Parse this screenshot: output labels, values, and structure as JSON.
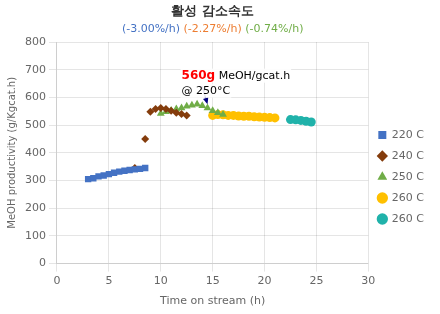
{
  "chart_data": {
    "type": "scatter",
    "title": "활성 감소속도",
    "subtitle": [
      {
        "text": "(-3.00%/h)",
        "color": "#4472c4"
      },
      {
        "text": " (-2.27%/h)",
        "color": "#ed7d31"
      },
      {
        "text": " (-0.74%/h)",
        "color": "#70ad47"
      }
    ],
    "xlabel": "Time on stream (h)",
    "ylabel": "MeOH productivity (g/Kgcat.h)",
    "xlim": [
      0,
      30
    ],
    "ylim": [
      0,
      800
    ],
    "xticks": [
      0,
      5,
      10,
      15,
      20,
      25,
      30
    ],
    "yticks": [
      0,
      100,
      200,
      300,
      400,
      500,
      600,
      700,
      800
    ],
    "grid": true,
    "legend": "right",
    "annotations": [
      {
        "x": 12.0,
        "y": 700,
        "lines": [
          [
            {
              "text": "560g",
              "color": "red",
              "bold": true
            },
            {
              "text": " MeOH/gcat.h",
              "color": "black"
            }
          ],
          [
            {
              "text": "@ 250°C",
              "color": "black"
            }
          ]
        ],
        "arrow": {
          "from": [
            14.0,
            640
          ],
          "to": [
            14.5,
            575
          ],
          "color": "navy"
        }
      }
    ],
    "series": [
      {
        "name": "220 C",
        "color": "#4472c4",
        "marker": "square",
        "x": [
          3.0,
          3.5,
          4.0,
          4.5,
          5.0,
          5.5,
          6.0,
          6.5,
          7.0,
          7.5,
          8.0,
          8.5
        ],
        "values": [
          305,
          308,
          315,
          318,
          323,
          328,
          332,
          335,
          338,
          340,
          342,
          345
        ]
      },
      {
        "name": "240 C",
        "color": "#843c0c",
        "marker": "diamond",
        "x": [
          7.5,
          8.5,
          9.0,
          9.5,
          10.0,
          10.5,
          11.0,
          11.5,
          12.0,
          12.5
        ],
        "values": [
          345,
          450,
          548,
          558,
          562,
          558,
          552,
          545,
          540,
          535
        ]
      },
      {
        "name": "250 C",
        "color": "#70ad47",
        "marker": "triangle",
        "x": [
          10.0,
          10.5,
          11.0,
          11.5,
          12.0,
          12.5,
          13.0,
          13.5,
          14.0,
          14.5,
          15.0,
          15.5,
          16.0
        ],
        "values": [
          542,
          548,
          553,
          558,
          562,
          568,
          572,
          575,
          570,
          562,
          552,
          545,
          538
        ]
      },
      {
        "name": "260 C",
        "color": "#ffc000",
        "marker": "circle",
        "x": [
          15.0,
          15.5,
          16.0,
          16.5,
          17.0,
          17.5,
          18.0,
          18.5,
          19.0,
          19.5,
          20.0,
          20.5,
          21.0
        ],
        "values": [
          535,
          538,
          537,
          535,
          535,
          533,
          532,
          532,
          530,
          529,
          528,
          527,
          526
        ]
      },
      {
        "name": "260 C",
        "color": "#20b2aa",
        "marker": "circle",
        "x": [
          22.5,
          23.0,
          23.5,
          24.0,
          24.5
        ],
        "values": [
          520,
          519,
          517,
          514,
          511
        ]
      }
    ]
  }
}
